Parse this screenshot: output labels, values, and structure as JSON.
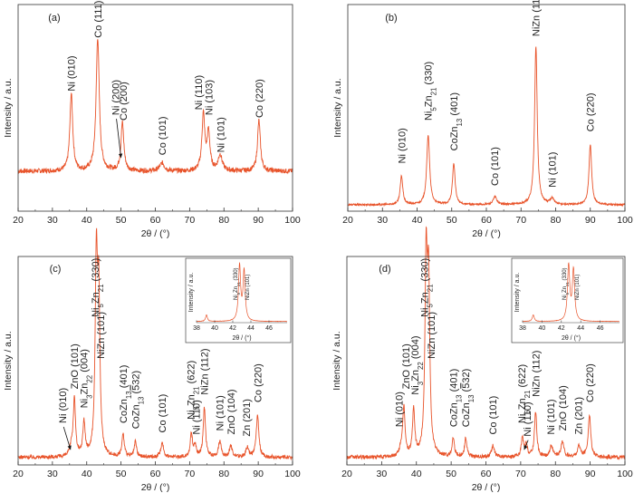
{
  "chart_data": [
    {
      "id": "a",
      "type": "line",
      "panel_label": "(a)",
      "xlabel": "2θ / (°)",
      "ylabel": "Intensity / a.u.",
      "xlim": [
        20,
        100
      ],
      "xticks": [
        "20",
        "30",
        "40",
        "50",
        "60",
        "70",
        "80",
        "90",
        "100"
      ],
      "baseline": 0.3,
      "noise": 0.018,
      "peaks": [
        {
          "x": 35.5,
          "h": 0.58,
          "w": 0.5
        },
        {
          "x": 43.2,
          "h": 1.0,
          "w": 0.55
        },
        {
          "x": 50.4,
          "h": 0.36,
          "w": 0.5
        },
        {
          "x": 62.0,
          "h": 0.06,
          "w": 0.8
        },
        {
          "x": 74.0,
          "h": 0.42,
          "w": 0.5
        },
        {
          "x": 75.5,
          "h": 0.28,
          "w": 0.5
        },
        {
          "x": 78.9,
          "h": 0.12,
          "w": 0.7
        },
        {
          "x": 90.2,
          "h": 0.38,
          "w": 0.5
        }
      ],
      "annotations": [
        {
          "x": 35.5,
          "label": "Ni (010)",
          "y": 0.9
        },
        {
          "x": 43.2,
          "label": "Co (111)",
          "y": 1.3
        },
        {
          "x": 50.6,
          "label": "Co (200)",
          "y": 0.68
        },
        {
          "x": 48.4,
          "label": "Ni (200)",
          "y": 0.72,
          "arrow": {
            "x": 50.0,
            "y": 0.4
          }
        },
        {
          "x": 62.0,
          "label": "Co (101)",
          "y": 0.42
        },
        {
          "x": 72.5,
          "label": "Ni (110)",
          "y": 0.76
        },
        {
          "x": 75.6,
          "label": "Ni (103)",
          "y": 0.72
        },
        {
          "x": 79.0,
          "label": "Ni (101)",
          "y": 0.44
        },
        {
          "x": 90.2,
          "label": "Co (220)",
          "y": 0.7
        }
      ],
      "ymax": 1.55
    },
    {
      "id": "b",
      "type": "line",
      "panel_label": "(b)",
      "xlabel": "2θ / (°)",
      "ylabel": "Intensity / a.u.",
      "xlim": [
        20,
        100
      ],
      "xticks": [
        "20",
        "30",
        "40",
        "50",
        "60",
        "70",
        "80",
        "90",
        "100"
      ],
      "baseline": 0.04,
      "noise": 0.006,
      "peaks": [
        {
          "x": 35.5,
          "h": 0.18,
          "w": 0.45
        },
        {
          "x": 43.2,
          "h": 0.44,
          "w": 0.5
        },
        {
          "x": 50.6,
          "h": 0.26,
          "w": 0.45
        },
        {
          "x": 62.5,
          "h": 0.05,
          "w": 0.6
        },
        {
          "x": 74.3,
          "h": 1.0,
          "w": 0.45
        },
        {
          "x": 79.0,
          "h": 0.04,
          "w": 0.6
        },
        {
          "x": 90.0,
          "h": 0.38,
          "w": 0.45
        }
      ],
      "annotations": [
        {
          "x": 35.5,
          "label": "Ni (010)",
          "y": 0.3
        },
        {
          "x": 43.2,
          "label": "Ni5Zn21 (330)",
          "y": 0.57
        },
        {
          "x": 50.6,
          "label": "CoZn13 (401)",
          "y": 0.38
        },
        {
          "x": 62.4,
          "label": "Co (101)",
          "y": 0.16
        },
        {
          "x": 74.3,
          "label": "NiZn (112)",
          "y": 1.1
        },
        {
          "x": 79.0,
          "label": "Ni (101)",
          "y": 0.15
        },
        {
          "x": 90.0,
          "label": "Co (220)",
          "y": 0.5
        }
      ],
      "ymax": 1.3
    },
    {
      "id": "c",
      "type": "line",
      "panel_label": "(c)",
      "xlabel": "2θ / (°)",
      "ylabel": "Intensity / a.u.",
      "xlim": [
        20,
        100
      ],
      "xticks": [
        "20",
        "30",
        "40",
        "50",
        "60",
        "70",
        "80",
        "90",
        "100"
      ],
      "baseline": 0.04,
      "noise": 0.01,
      "peaks": [
        {
          "x": 35.5,
          "h": 0.05,
          "w": 0.45
        },
        {
          "x": 36.4,
          "h": 0.3,
          "w": 0.4
        },
        {
          "x": 39.2,
          "h": 0.18,
          "w": 0.4
        },
        {
          "x": 42.8,
          "h": 1.0,
          "w": 0.4
        },
        {
          "x": 43.5,
          "h": 0.8,
          "w": 0.4
        },
        {
          "x": 50.6,
          "h": 0.12,
          "w": 0.4
        },
        {
          "x": 54.2,
          "h": 0.08,
          "w": 0.4
        },
        {
          "x": 62.0,
          "h": 0.07,
          "w": 0.5
        },
        {
          "x": 70.5,
          "h": 0.12,
          "w": 0.4
        },
        {
          "x": 71.6,
          "h": 0.06,
          "w": 0.4
        },
        {
          "x": 74.3,
          "h": 0.26,
          "w": 0.4
        },
        {
          "x": 78.8,
          "h": 0.08,
          "w": 0.5
        },
        {
          "x": 82.0,
          "h": 0.06,
          "w": 0.5
        },
        {
          "x": 86.8,
          "h": 0.05,
          "w": 0.5
        },
        {
          "x": 89.8,
          "h": 0.22,
          "w": 0.45
        }
      ],
      "annotations": [
        {
          "x": 33.0,
          "label": "Ni (010)",
          "y": 0.22,
          "arrow": {
            "x": 35.3,
            "y": 0.08
          }
        },
        {
          "x": 36.4,
          "label": "ZnO (101)",
          "y": 0.4
        },
        {
          "x": 39.2,
          "label": "Ni3Zn22 (004)",
          "y": 0.3
        },
        {
          "x": 42.4,
          "label": "Ni5Zn21 (330)",
          "y": 0.78
        },
        {
          "x": 44.0,
          "label": "NiZn (101)",
          "y": 0.56
        },
        {
          "x": 50.6,
          "label": "CoZn13 (401)",
          "y": 0.22
        },
        {
          "x": 54.2,
          "label": "CoZn13 (-532)",
          "y": 0.19
        },
        {
          "x": 62.0,
          "label": "Co (101)",
          "y": 0.17
        },
        {
          "x": 70.3,
          "label": "Ni5Zn21 (622)",
          "y": 0.24
        },
        {
          "x": 71.9,
          "label": "Ni (110)",
          "y": 0.16
        },
        {
          "x": 74.3,
          "label": "NiZn (112)",
          "y": 0.37
        },
        {
          "x": 78.8,
          "label": "Ni (101)",
          "y": 0.18
        },
        {
          "x": 82.0,
          "label": "ZnO (104)",
          "y": 0.16
        },
        {
          "x": 86.6,
          "label": "Zn (201)",
          "y": 0.15
        },
        {
          "x": 89.8,
          "label": "Co (220)",
          "y": 0.33
        }
      ],
      "ymax": 1.1,
      "inset": {
        "xlim": [
          38,
          48
        ],
        "xticks": [
          "38",
          "40",
          "42",
          "44",
          "46"
        ],
        "xlabel": "2θ / (°)",
        "ylabel": "Intensity / a.u.",
        "peaks": [
          {
            "x": 39.1,
            "h": 0.12,
            "w": 0.12
          },
          {
            "x": 42.75,
            "h": 1.0,
            "w": 0.14
          },
          {
            "x": 43.25,
            "h": 0.9,
            "w": 0.14
          }
        ],
        "annotations": [
          {
            "x": 42.3,
            "label": "Ni5Zn21 (330)"
          },
          {
            "x": 43.6,
            "label": "NiZn (101)"
          }
        ]
      }
    },
    {
      "id": "d",
      "type": "line",
      "panel_label": "(d)",
      "xlabel": "2θ / (°)",
      "ylabel": "Intensity / a.u.",
      "xlim": [
        20,
        100
      ],
      "xticks": [
        "20",
        "30",
        "40",
        "50",
        "60",
        "70",
        "80",
        "90",
        "100"
      ],
      "baseline": 0.04,
      "noise": 0.01,
      "peaks": [
        {
          "x": 35.5,
          "h": 0.04,
          "w": 0.45
        },
        {
          "x": 36.4,
          "h": 0.26,
          "w": 0.4
        },
        {
          "x": 39.2,
          "h": 0.24,
          "w": 0.4
        },
        {
          "x": 42.8,
          "h": 1.0,
          "w": 0.4
        },
        {
          "x": 43.5,
          "h": 0.86,
          "w": 0.4
        },
        {
          "x": 50.6,
          "h": 0.1,
          "w": 0.4
        },
        {
          "x": 54.2,
          "h": 0.1,
          "w": 0.4
        },
        {
          "x": 62.0,
          "h": 0.06,
          "w": 0.5
        },
        {
          "x": 70.5,
          "h": 0.1,
          "w": 0.4
        },
        {
          "x": 71.6,
          "h": 0.06,
          "w": 0.4
        },
        {
          "x": 74.3,
          "h": 0.24,
          "w": 0.4
        },
        {
          "x": 78.8,
          "h": 0.06,
          "w": 0.5
        },
        {
          "x": 82.0,
          "h": 0.08,
          "w": 0.5
        },
        {
          "x": 86.8,
          "h": 0.06,
          "w": 0.5
        },
        {
          "x": 89.8,
          "h": 0.22,
          "w": 0.45
        }
      ],
      "annotations": [
        {
          "x": 35.0,
          "label": "Ni (010)",
          "y": 0.2
        },
        {
          "x": 37.0,
          "label": "ZnO (101)",
          "y": 0.4
        },
        {
          "x": 39.5,
          "label": "Ni3Zn22 (004)",
          "y": 0.37
        },
        {
          "x": 42.3,
          "label": "Ni5Zn21 (330)",
          "y": 0.78
        },
        {
          "x": 44.2,
          "label": "NiZn (101)",
          "y": 0.56
        },
        {
          "x": 50.6,
          "label": "CoZn13 (401)",
          "y": 0.2
        },
        {
          "x": 54.2,
          "label": "CoZn13 (-532)",
          "y": 0.2
        },
        {
          "x": 62.0,
          "label": "Co (101)",
          "y": 0.16
        },
        {
          "x": 70.3,
          "label": "Ni5Zn21 (622)",
          "y": 0.22
        },
        {
          "x": 71.9,
          "label": "Ni (110)",
          "y": 0.15,
          "arrow": {
            "x": 71.0,
            "y": 0.08
          }
        },
        {
          "x": 74.3,
          "label": "NiZn (112)",
          "y": 0.36
        },
        {
          "x": 78.6,
          "label": "Ni (101)",
          "y": 0.16
        },
        {
          "x": 82.0,
          "label": "ZnO (104)",
          "y": 0.18
        },
        {
          "x": 86.6,
          "label": "Zn (201)",
          "y": 0.16
        },
        {
          "x": 89.8,
          "label": "Co (220)",
          "y": 0.33
        }
      ],
      "ymax": 1.1,
      "inset": {
        "xlim": [
          38,
          48
        ],
        "xticks": [
          "38",
          "40",
          "42",
          "44",
          "46"
        ],
        "xlabel": "2θ / (°)",
        "ylabel": "Intensity / a.u.",
        "peaks": [
          {
            "x": 39.1,
            "h": 0.12,
            "w": 0.12
          },
          {
            "x": 42.75,
            "h": 1.0,
            "w": 0.14
          },
          {
            "x": 43.25,
            "h": 0.92,
            "w": 0.14
          }
        ],
        "annotations": [
          {
            "x": 42.3,
            "label": "Ni5Zn21 (330)"
          },
          {
            "x": 43.6,
            "label": "NiZn (101)"
          }
        ]
      }
    }
  ],
  "colors": {
    "trace": "#e8532a",
    "axis": "#333333"
  }
}
